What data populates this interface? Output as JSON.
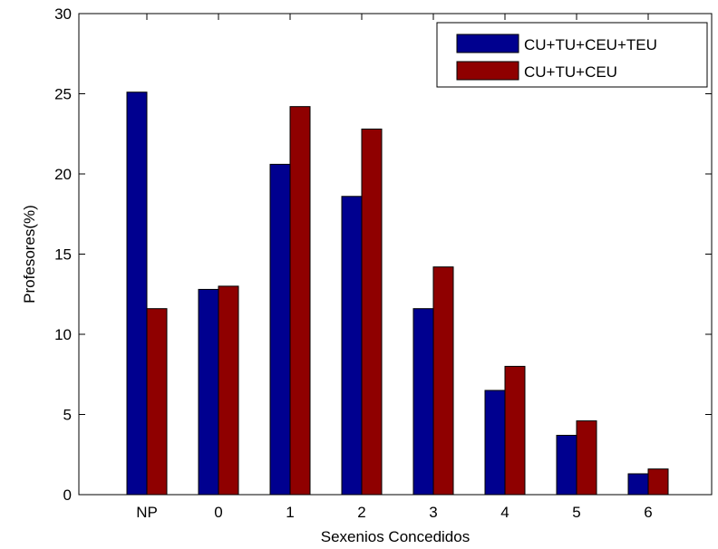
{
  "chart_data": {
    "type": "bar",
    "title": "",
    "xlabel": "Sexenios Concedidos",
    "ylabel": "Profesores(%)",
    "categories": [
      "NP",
      "0",
      "1",
      "2",
      "3",
      "4",
      "5",
      "6"
    ],
    "ylim": [
      0,
      30
    ],
    "yticks": [
      "0",
      "5",
      "10",
      "15",
      "20",
      "25",
      "30"
    ],
    "grid": false,
    "legend_position": "top-right",
    "series": [
      {
        "name": "CU+TU+CEU+TEU",
        "color": "#00008f",
        "values": [
          25.1,
          12.8,
          20.6,
          18.6,
          11.6,
          6.5,
          3.7,
          1.3
        ]
      },
      {
        "name": "CU+TU+CEU",
        "color": "#8f0000",
        "values": [
          11.6,
          13.0,
          24.2,
          22.8,
          14.2,
          8.0,
          4.6,
          1.6
        ]
      }
    ]
  }
}
